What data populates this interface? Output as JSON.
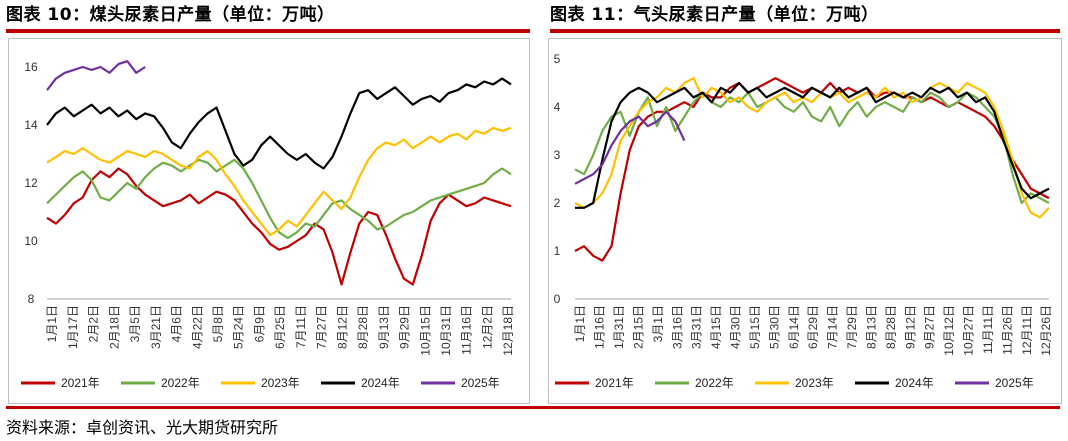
{
  "source": "资料来源：卓创资讯、光大期货研究所",
  "colors": {
    "2021年": "#c00000",
    "2022年": "#70ad47",
    "2023年": "#ffc000",
    "2024年": "#000000",
    "2025年": "#7030a0"
  },
  "chart_data": [
    {
      "type": "line",
      "title": "图表 10：煤头尿素日产量（单位：万吨）",
      "x_ticks": [
        "1月1日",
        "1月17日",
        "2月2日",
        "2月18日",
        "3月5日",
        "3月21日",
        "4月6日",
        "4月22日",
        "5月8日",
        "5月24日",
        "6月9日",
        "6月25日",
        "7月11日",
        "7月27日",
        "8月12日",
        "8月28日",
        "9月13日",
        "9月29日",
        "10月15日",
        "10月31日",
        "11月16日",
        "12月2日",
        "12月18日"
      ],
      "y_ticks": [
        "8",
        "10",
        "12",
        "14",
        "16"
      ],
      "ylim": [
        8,
        16
      ],
      "legend": [
        "2021年",
        "2022年",
        "2023年",
        "2024年",
        "2025年"
      ],
      "series": [
        {
          "name": "2021年",
          "x": [
            0,
            7,
            14,
            21,
            28,
            35,
            42,
            49,
            56,
            63,
            70,
            77,
            84,
            91,
            98,
            105,
            112,
            119,
            126,
            133,
            140,
            147,
            154,
            161,
            168,
            175,
            182,
            189,
            196,
            203,
            210,
            217,
            224,
            231,
            238,
            245,
            252,
            259,
            266,
            273,
            280,
            287,
            294,
            301,
            308,
            315,
            322,
            329,
            336,
            343,
            350,
            357,
            364
          ],
          "y": [
            10.8,
            10.6,
            10.9,
            11.3,
            11.5,
            12.1,
            12.4,
            12.2,
            12.5,
            12.3,
            11.9,
            11.6,
            11.4,
            11.2,
            11.3,
            11.4,
            11.6,
            11.3,
            11.5,
            11.7,
            11.6,
            11.4,
            11.0,
            10.6,
            10.3,
            9.9,
            9.7,
            9.8,
            10.0,
            10.2,
            10.6,
            10.4,
            9.6,
            8.5,
            9.6,
            10.6,
            11.0,
            10.9,
            10.2,
            9.4,
            8.7,
            8.5,
            9.5,
            10.7,
            11.3,
            11.6,
            11.4,
            11.2,
            11.3,
            11.5,
            11.4,
            11.3,
            11.2
          ]
        },
        {
          "name": "2022年",
          "x": [
            0,
            7,
            14,
            21,
            28,
            35,
            42,
            49,
            56,
            63,
            70,
            77,
            84,
            91,
            98,
            105,
            112,
            119,
            126,
            133,
            140,
            147,
            154,
            161,
            168,
            175,
            182,
            189,
            196,
            203,
            210,
            217,
            224,
            231,
            238,
            245,
            252,
            259,
            266,
            273,
            280,
            287,
            294,
            301,
            308,
            315,
            322,
            329,
            336,
            343,
            350,
            357,
            364
          ],
          "y": [
            11.3,
            11.6,
            11.9,
            12.2,
            12.4,
            12.1,
            11.5,
            11.4,
            11.7,
            12.0,
            11.8,
            12.2,
            12.5,
            12.7,
            12.6,
            12.4,
            12.6,
            12.8,
            12.7,
            12.4,
            12.6,
            12.8,
            12.5,
            12.0,
            11.4,
            10.8,
            10.3,
            10.1,
            10.3,
            10.6,
            10.5,
            10.9,
            11.3,
            11.4,
            11.1,
            10.9,
            10.7,
            10.4,
            10.5,
            10.7,
            10.9,
            11.0,
            11.2,
            11.4,
            11.5,
            11.6,
            11.7,
            11.8,
            11.9,
            12.0,
            12.3,
            12.5,
            12.3
          ]
        },
        {
          "name": "2023年",
          "x": [
            0,
            7,
            14,
            21,
            28,
            35,
            42,
            49,
            56,
            63,
            70,
            77,
            84,
            91,
            98,
            105,
            112,
            119,
            126,
            133,
            140,
            147,
            154,
            161,
            168,
            175,
            182,
            189,
            196,
            203,
            210,
            217,
            224,
            231,
            238,
            245,
            252,
            259,
            266,
            273,
            280,
            287,
            294,
            301,
            308,
            315,
            322,
            329,
            336,
            343,
            350,
            357,
            364
          ],
          "y": [
            12.7,
            12.9,
            13.1,
            13.0,
            13.2,
            13.0,
            12.8,
            12.7,
            12.9,
            13.1,
            13.0,
            12.9,
            13.1,
            13.0,
            12.8,
            12.6,
            12.5,
            12.9,
            13.1,
            12.8,
            12.3,
            11.9,
            11.4,
            11.0,
            10.6,
            10.2,
            10.4,
            10.7,
            10.5,
            10.9,
            11.3,
            11.7,
            11.4,
            11.1,
            11.5,
            12.2,
            12.8,
            13.2,
            13.4,
            13.3,
            13.5,
            13.2,
            13.4,
            13.6,
            13.4,
            13.6,
            13.7,
            13.5,
            13.8,
            13.7,
            13.9,
            13.8,
            13.9
          ]
        },
        {
          "name": "2024年",
          "x": [
            0,
            7,
            14,
            21,
            28,
            35,
            42,
            49,
            56,
            63,
            70,
            77,
            84,
            91,
            98,
            105,
            112,
            119,
            126,
            133,
            140,
            147,
            154,
            161,
            168,
            175,
            182,
            189,
            196,
            203,
            210,
            217,
            224,
            231,
            238,
            245,
            252,
            259,
            266,
            273,
            280,
            287,
            294,
            301,
            308,
            315,
            322,
            329,
            336,
            343,
            350,
            357,
            364
          ],
          "y": [
            14.0,
            14.4,
            14.6,
            14.3,
            14.5,
            14.7,
            14.4,
            14.6,
            14.3,
            14.5,
            14.2,
            14.4,
            14.3,
            13.9,
            13.4,
            13.2,
            13.7,
            14.1,
            14.4,
            14.6,
            13.8,
            13.0,
            12.6,
            12.8,
            13.3,
            13.6,
            13.3,
            13.0,
            12.8,
            13.0,
            12.7,
            12.5,
            12.9,
            13.6,
            14.4,
            15.1,
            15.2,
            14.9,
            15.1,
            15.3,
            15.0,
            14.7,
            14.9,
            15.0,
            14.8,
            15.1,
            15.2,
            15.4,
            15.3,
            15.5,
            15.4,
            15.6,
            15.4
          ]
        },
        {
          "name": "2025年",
          "x": [
            0,
            7,
            14,
            21,
            28,
            35,
            42,
            49,
            56,
            63,
            70,
            77
          ],
          "y": [
            15.2,
            15.6,
            15.8,
            15.9,
            16.0,
            15.9,
            16.0,
            15.8,
            16.1,
            16.2,
            15.8,
            16.0
          ]
        }
      ]
    },
    {
      "type": "line",
      "title": "图表 11：气头尿素日产量（单位：万吨）",
      "x_ticks": [
        "1月1日",
        "1月16日",
        "1月31日",
        "2月15日",
        "3月1日",
        "3月16日",
        "3月31日",
        "4月15日",
        "4月30日",
        "5月15日",
        "5月30日",
        "6月14日",
        "6月29日",
        "7月14日",
        "7月29日",
        "8月13日",
        "8月28日",
        "9月12日",
        "9月27日",
        "10月12日",
        "10月27日",
        "11月11日",
        "11月26日",
        "12月11日",
        "12月26日"
      ],
      "y_ticks": [
        "0",
        "1",
        "2",
        "3",
        "4",
        "5"
      ],
      "ylim": [
        0,
        5
      ],
      "legend": [
        "2021年",
        "2022年",
        "2023年",
        "2024年",
        "2025年"
      ],
      "series": [
        {
          "name": "2021年",
          "x": [
            0,
            7,
            14,
            21,
            28,
            35,
            42,
            49,
            56,
            63,
            70,
            77,
            84,
            91,
            98,
            105,
            112,
            119,
            126,
            133,
            140,
            147,
            154,
            161,
            168,
            175,
            182,
            189,
            196,
            203,
            210,
            217,
            224,
            231,
            238,
            245,
            252,
            259,
            266,
            273,
            280,
            287,
            294,
            301,
            308,
            315,
            322,
            329,
            336,
            343,
            350,
            357,
            364
          ],
          "y": [
            1.0,
            1.1,
            0.9,
            0.8,
            1.1,
            2.2,
            3.1,
            3.6,
            3.8,
            3.9,
            3.9,
            4.0,
            4.1,
            4.0,
            4.3,
            4.2,
            4.2,
            4.4,
            4.5,
            4.3,
            4.4,
            4.5,
            4.6,
            4.5,
            4.4,
            4.3,
            4.4,
            4.3,
            4.5,
            4.3,
            4.4,
            4.3,
            4.4,
            4.2,
            4.3,
            4.3,
            4.2,
            4.2,
            4.1,
            4.2,
            4.1,
            4.0,
            4.1,
            4.0,
            3.9,
            3.8,
            3.6,
            3.3,
            2.9,
            2.6,
            2.3,
            2.2,
            2.1
          ]
        },
        {
          "name": "2022年",
          "x": [
            0,
            7,
            14,
            21,
            28,
            35,
            42,
            49,
            56,
            63,
            70,
            77,
            84,
            91,
            98,
            105,
            112,
            119,
            126,
            133,
            140,
            147,
            154,
            161,
            168,
            175,
            182,
            189,
            196,
            203,
            210,
            217,
            224,
            231,
            238,
            245,
            252,
            259,
            266,
            273,
            280,
            287,
            294,
            301,
            308,
            315,
            322,
            329,
            336,
            343,
            350,
            357,
            364
          ],
          "y": [
            2.7,
            2.6,
            3.0,
            3.5,
            3.8,
            3.9,
            3.4,
            3.9,
            4.2,
            3.6,
            4.0,
            3.5,
            3.8,
            4.1,
            4.3,
            4.1,
            4.0,
            4.2,
            4.1,
            4.3,
            4.0,
            4.1,
            4.2,
            4.0,
            3.9,
            4.1,
            3.8,
            3.7,
            4.0,
            3.6,
            3.9,
            4.1,
            3.8,
            4.0,
            4.1,
            4.0,
            3.9,
            4.2,
            4.1,
            4.3,
            4.2,
            4.0,
            4.1,
            4.3,
            4.2,
            4.0,
            3.8,
            3.4,
            2.6,
            2.0,
            2.2,
            2.1,
            2.0
          ]
        },
        {
          "name": "2023年",
          "x": [
            0,
            7,
            14,
            21,
            28,
            35,
            42,
            49,
            56,
            63,
            70,
            77,
            84,
            91,
            98,
            105,
            112,
            119,
            126,
            133,
            140,
            147,
            154,
            161,
            168,
            175,
            182,
            189,
            196,
            203,
            210,
            217,
            224,
            231,
            238,
            245,
            252,
            259,
            266,
            273,
            280,
            287,
            294,
            301,
            308,
            315,
            322,
            329,
            336,
            343,
            350,
            357,
            364
          ],
          "y": [
            2.0,
            1.9,
            2.0,
            2.2,
            2.6,
            3.3,
            3.6,
            3.9,
            4.1,
            4.2,
            4.4,
            4.3,
            4.5,
            4.6,
            4.2,
            4.4,
            4.3,
            4.1,
            4.2,
            4.0,
            3.9,
            4.1,
            4.2,
            4.3,
            4.1,
            4.2,
            4.1,
            4.3,
            4.2,
            4.3,
            4.1,
            4.2,
            4.3,
            4.2,
            4.4,
            4.2,
            4.3,
            4.1,
            4.2,
            4.4,
            4.5,
            4.4,
            4.3,
            4.5,
            4.4,
            4.3,
            4.0,
            3.5,
            2.9,
            2.2,
            1.8,
            1.7,
            1.9
          ]
        },
        {
          "name": "2024年",
          "x": [
            0,
            7,
            14,
            21,
            28,
            35,
            42,
            49,
            56,
            63,
            70,
            77,
            84,
            91,
            98,
            105,
            112,
            119,
            126,
            133,
            140,
            147,
            154,
            161,
            168,
            175,
            182,
            189,
            196,
            203,
            210,
            217,
            224,
            231,
            238,
            245,
            252,
            259,
            266,
            273,
            280,
            287,
            294,
            301,
            308,
            315,
            322,
            329,
            336,
            343,
            350,
            357,
            364
          ],
          "y": [
            1.9,
            1.9,
            2.0,
            2.9,
            3.7,
            4.1,
            4.3,
            4.4,
            4.3,
            4.1,
            4.2,
            4.3,
            4.4,
            4.2,
            4.3,
            4.1,
            4.4,
            4.3,
            4.5,
            4.3,
            4.4,
            4.2,
            4.3,
            4.4,
            4.3,
            4.2,
            4.4,
            4.3,
            4.2,
            4.4,
            4.2,
            4.3,
            4.4,
            4.1,
            4.2,
            4.3,
            4.2,
            4.3,
            4.2,
            4.4,
            4.3,
            4.4,
            4.2,
            4.3,
            4.1,
            4.2,
            3.9,
            3.3,
            2.8,
            2.3,
            2.1,
            2.2,
            2.3
          ]
        },
        {
          "name": "2025年",
          "x": [
            0,
            7,
            14,
            21,
            28,
            35,
            42,
            49,
            56,
            63,
            70,
            77,
            84
          ],
          "y": [
            2.4,
            2.5,
            2.6,
            2.8,
            3.2,
            3.5,
            3.7,
            3.8,
            3.6,
            3.7,
            3.9,
            3.7,
            3.3
          ]
        }
      ]
    }
  ]
}
